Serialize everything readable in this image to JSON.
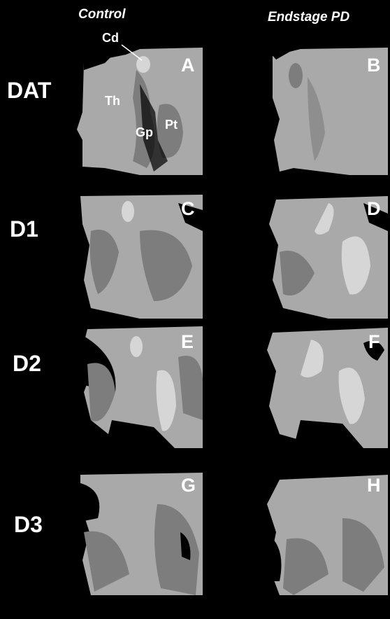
{
  "columns": [
    "Control",
    "Endstage PD"
  ],
  "rows": [
    {
      "label": "DAT",
      "panels": [
        "A",
        "B"
      ]
    },
    {
      "label": "D1",
      "panels": [
        "C",
        "D"
      ]
    },
    {
      "label": "D2",
      "panels": [
        "E",
        "F"
      ]
    },
    {
      "label": "D3",
      "panels": [
        "G",
        "H"
      ]
    }
  ],
  "annotations": [
    "Cd",
    "Th",
    "Gp",
    "Pt"
  ]
}
